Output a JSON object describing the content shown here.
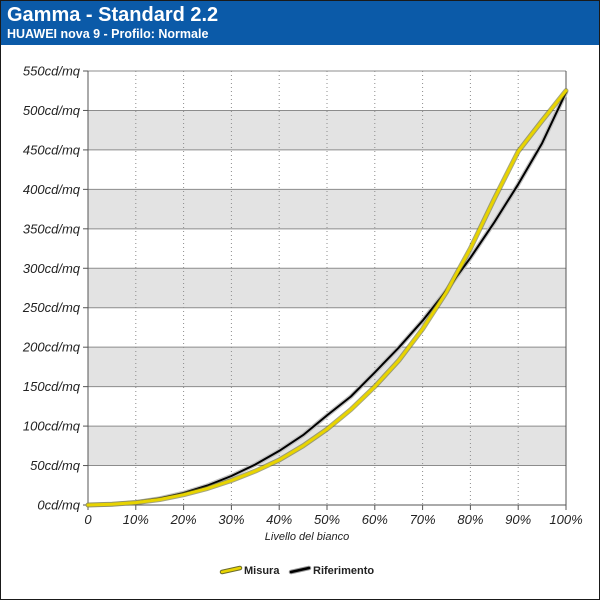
{
  "header": {
    "title": "Gamma - Standard 2.2",
    "subtitle": "HUAWEI nova 9 - Profilo: Normale"
  },
  "colors": {
    "header_bg": "#0b5aa8",
    "measured": "#e8d400",
    "reference": "#000000",
    "band": "#e3e3e3"
  },
  "chart_data": {
    "type": "line",
    "xlabel": "Livello del bianco",
    "ylabel": "",
    "x_ticks": [
      "0",
      "10%",
      "20%",
      "30%",
      "40%",
      "50%",
      "60%",
      "70%",
      "80%",
      "90%",
      "100%"
    ],
    "y_ticks": [
      "0cd/mq",
      "50cd/mq",
      "100cd/mq",
      "150cd/mq",
      "200cd/mq",
      "250cd/mq",
      "300cd/mq",
      "350cd/mq",
      "400cd/mq",
      "450cd/mq",
      "500cd/mq",
      "550cd/mq"
    ],
    "xlim": [
      0,
      100
    ],
    "ylim": [
      0,
      550
    ],
    "grid": true,
    "legend_position": "bottom-center",
    "x": [
      0,
      5,
      10,
      15,
      20,
      25,
      30,
      35,
      40,
      45,
      50,
      55,
      60,
      65,
      70,
      75,
      80,
      85,
      90,
      95,
      100
    ],
    "series": [
      {
        "name": "Misura",
        "color": "#e8d400",
        "values": [
          0,
          1,
          3,
          7,
          13,
          21,
          31,
          43,
          57,
          75,
          96,
          121,
          150,
          183,
          223,
          270,
          325,
          388,
          448,
          487,
          525
        ]
      },
      {
        "name": "Riferimento",
        "color": "#000000",
        "values": [
          0,
          0.7,
          3.3,
          8.2,
          15.2,
          24.7,
          36.8,
          51.3,
          68.6,
          88.6,
          113.5,
          137.5,
          168.0,
          199.3,
          233.6,
          271.9,
          313.3,
          358.2,
          406.4,
          458.5,
          523
        ]
      }
    ]
  }
}
